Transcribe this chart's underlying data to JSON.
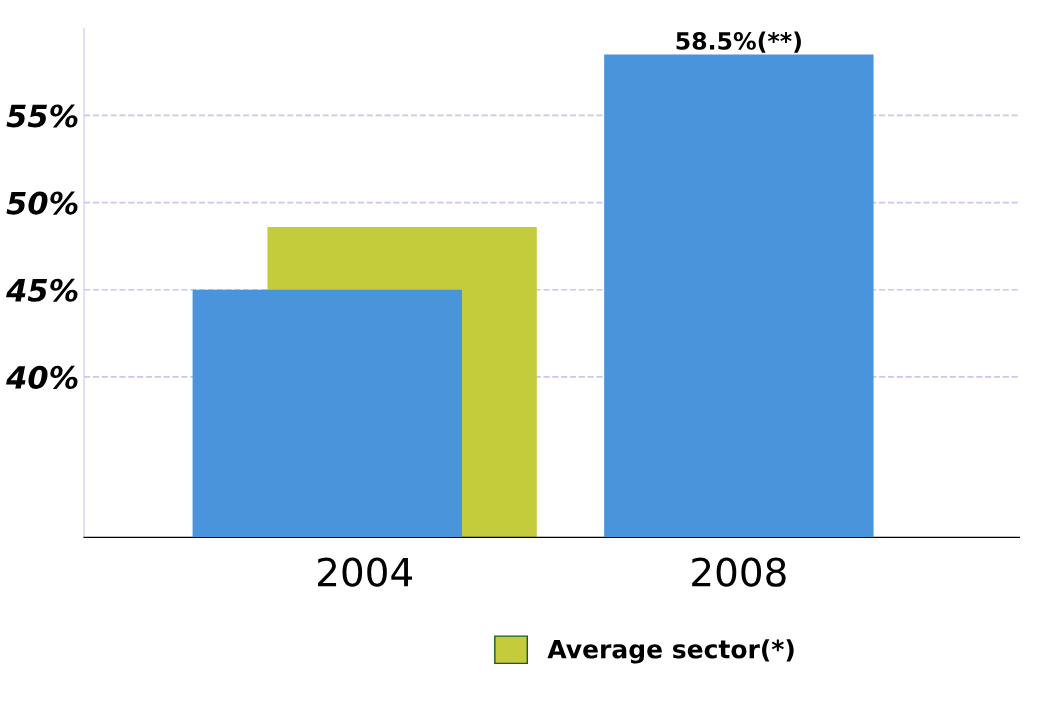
{
  "chart_data": {
    "type": "bar",
    "categories": [
      "2004",
      "2008"
    ],
    "series": [
      {
        "color": "#4a94dc",
        "values": [
          45,
          58.5
        ],
        "value_labels": [
          null,
          "58.5%(**)"
        ]
      },
      {
        "name": "Average sector(*)",
        "color": "#c4cc3c",
        "values": [
          48.6,
          null
        ]
      }
    ],
    "ylim": [
      30.8,
      60
    ],
    "yticks": [
      {
        "value": 40,
        "label": "40%"
      },
      {
        "value": 45,
        "label": "45%"
      },
      {
        "value": 50,
        "label": "50%"
      },
      {
        "value": 55,
        "label": "55%"
      }
    ],
    "grid": "y",
    "legend": "bottom"
  }
}
